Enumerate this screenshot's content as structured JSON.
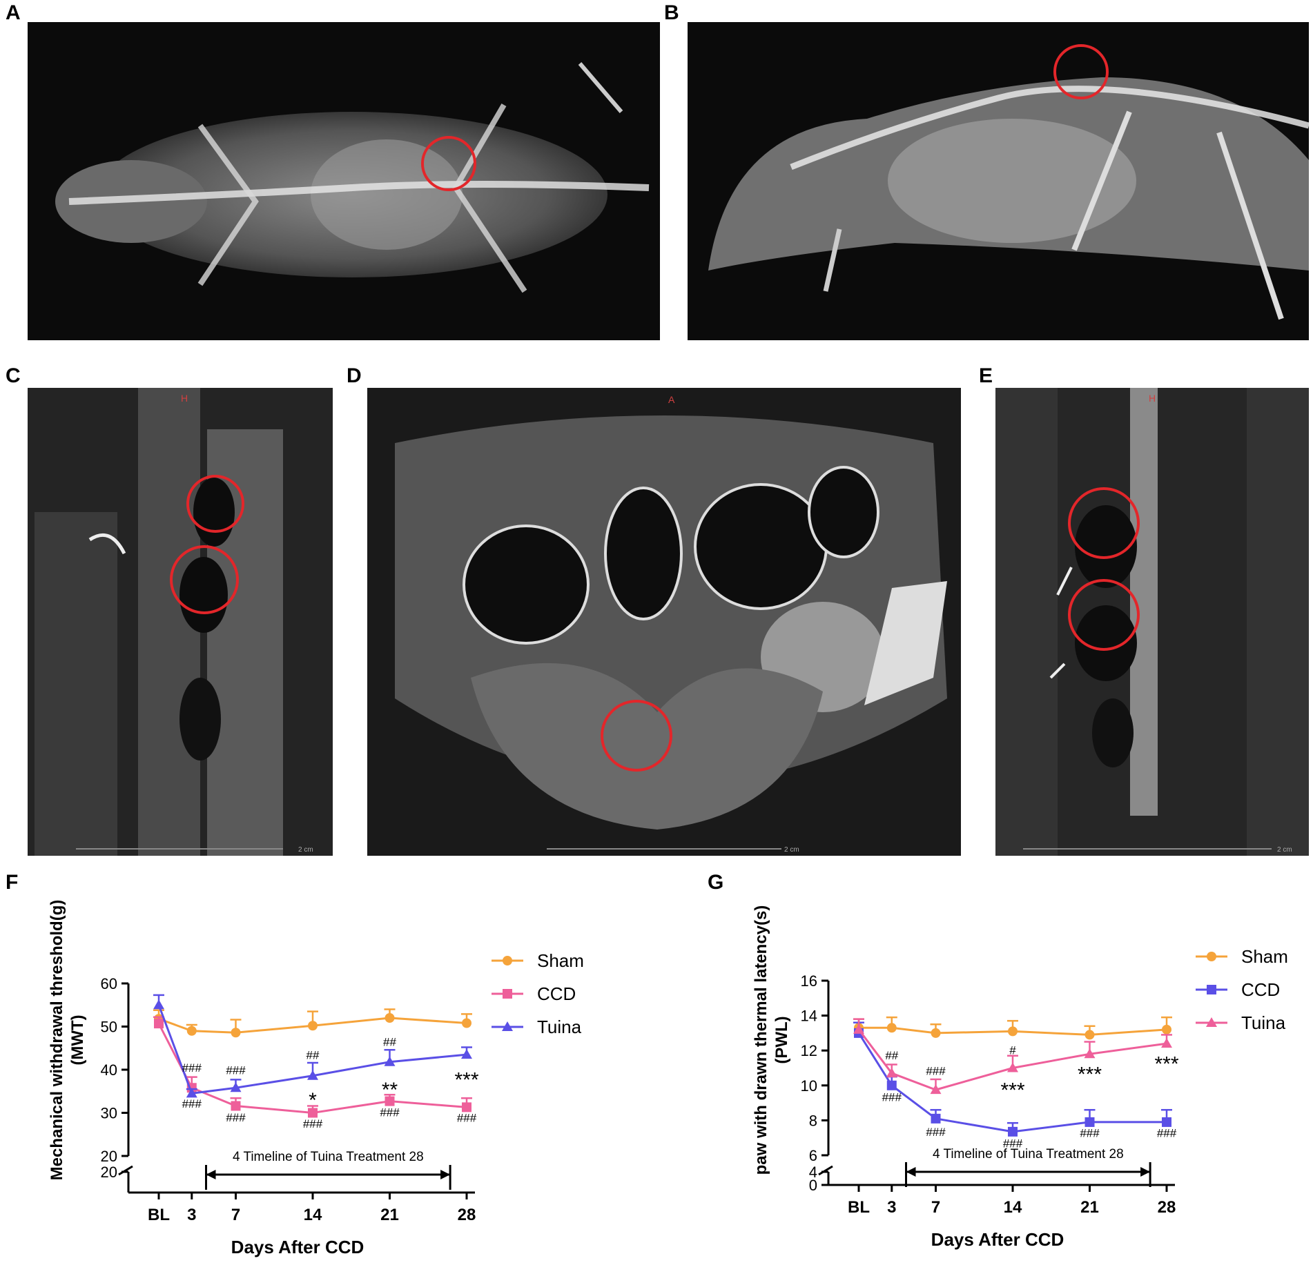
{
  "panels": {
    "A": "A",
    "B": "B",
    "C": "C",
    "D": "D",
    "E": "E",
    "F": "F",
    "G": "G"
  },
  "mri_labels": {
    "C_corner": "H",
    "D_corner": "A",
    "E_corner": "H",
    "scale_text": "2 cm"
  },
  "colors": {
    "sham": "#F5A33A",
    "ccd_f": "#EE5F9A",
    "tuina_f": "#5A4FE6",
    "ccd_g": "#5A4FE6",
    "tuina_g": "#EE5F9A",
    "circle": "#E3262A"
  },
  "chart_data": [
    {
      "type": "line",
      "ylabel": "Mechanical withdrawal threshold(g) (MWT)",
      "ylabel_line1": "Mechanical withdrawal threshold(g)",
      "ylabel_line2": "(MWT)",
      "xlabel": "Days After CCD",
      "categories": [
        "BL",
        "3",
        "7",
        "14",
        "21",
        "28"
      ],
      "x_positions": [
        0,
        3,
        7,
        14,
        21,
        28
      ],
      "ylim": [
        20,
        60
      ],
      "yticks": [
        "20",
        "30",
        "40",
        "50",
        "60"
      ],
      "ybreak_label": "20",
      "series": [
        {
          "name": "Sham",
          "values": [
            51.8,
            49.0,
            48.6,
            50.2,
            52.0,
            50.8
          ],
          "err": [
            2.0,
            1.4,
            3.0,
            3.3,
            2.0,
            2.1
          ],
          "marker": "circle"
        },
        {
          "name": "CCD",
          "values": [
            50.7,
            35.8,
            31.6,
            30.0,
            32.7,
            31.3
          ],
          "err": [
            1.5,
            2.5,
            1.8,
            1.6,
            1.5,
            2.1
          ],
          "marker": "square"
        },
        {
          "name": "Tuina",
          "values": [
            55.0,
            34.5,
            35.8,
            38.6,
            41.8,
            43.5
          ],
          "err": [
            2.3,
            1.0,
            1.9,
            3.0,
            2.8,
            1.7
          ],
          "marker": "triangle"
        }
      ],
      "timeline_text": "4 Timeline of Tuina Treatment 28",
      "annotations": [
        {
          "text": "###",
          "x": 3,
          "y": 39.5
        },
        {
          "text": "###",
          "x": 3,
          "y": 31.2
        },
        {
          "text": "###",
          "x": 7,
          "y": 39.0
        },
        {
          "text": "###",
          "x": 7,
          "y": 28.0
        },
        {
          "text": "##",
          "x": 14,
          "y": 42.5
        },
        {
          "text": "*",
          "x": 14,
          "y": 33.6
        },
        {
          "text": "###",
          "x": 14,
          "y": 26.6
        },
        {
          "text": "##",
          "x": 21,
          "y": 45.5
        },
        {
          "text": "**",
          "x": 21,
          "y": 36.0
        },
        {
          "text": "###",
          "x": 21,
          "y": 29.2
        },
        {
          "text": "***",
          "x": 28,
          "y": 38.3
        },
        {
          "text": "###",
          "x": 28,
          "y": 27.9
        }
      ]
    },
    {
      "type": "line",
      "ylabel": "paw with drawn thermal latency(s) (PWL)",
      "ylabel_line1": "paw with drawn thermal latency(s)",
      "ylabel_line2": "(PWL)",
      "xlabel": "Days After CCD",
      "categories": [
        "BL",
        "3",
        "7",
        "14",
        "21",
        "28"
      ],
      "x_positions": [
        0,
        3,
        7,
        14,
        21,
        28
      ],
      "ylim": [
        6,
        16
      ],
      "yticks": [
        "6",
        "8",
        "10",
        "12",
        "14",
        "16"
      ],
      "ybreak_labels": [
        "0",
        "4"
      ],
      "series": [
        {
          "name": "Sham",
          "values": [
            13.3,
            13.3,
            13.0,
            13.1,
            12.9,
            13.2
          ],
          "err": [
            0.5,
            0.6,
            0.5,
            0.6,
            0.5,
            0.7
          ],
          "marker": "circle"
        },
        {
          "name": "CCD",
          "values": [
            13.0,
            10.0,
            8.1,
            7.35,
            7.9,
            7.9
          ],
          "err": [
            0.6,
            0.5,
            0.5,
            0.5,
            0.7,
            0.7
          ],
          "marker": "square"
        },
        {
          "name": "Tuina",
          "values": [
            13.2,
            10.7,
            9.75,
            11.0,
            11.8,
            12.4
          ],
          "err": [
            0.6,
            0.5,
            0.6,
            0.7,
            0.7,
            0.5
          ],
          "marker": "triangle"
        }
      ],
      "timeline_text": "4 Timeline of Tuina Treatment 28",
      "annotations": [
        {
          "text": "##",
          "x": 3,
          "y": 11.5
        },
        {
          "text": "###",
          "x": 3,
          "y": 9.1
        },
        {
          "text": "###",
          "x": 7,
          "y": 10.6
        },
        {
          "text": "###",
          "x": 7,
          "y": 7.1
        },
        {
          "text": "#",
          "x": 14,
          "y": 11.8
        },
        {
          "text": "***",
          "x": 14,
          "y": 9.9
        },
        {
          "text": "###",
          "x": 14,
          "y": 6.45
        },
        {
          "text": "***",
          "x": 21,
          "y": 10.8
        },
        {
          "text": "###",
          "x": 21,
          "y": 7.05
        },
        {
          "text": "***",
          "x": 28,
          "y": 11.4
        },
        {
          "text": "###",
          "x": 28,
          "y": 7.05
        }
      ]
    }
  ]
}
